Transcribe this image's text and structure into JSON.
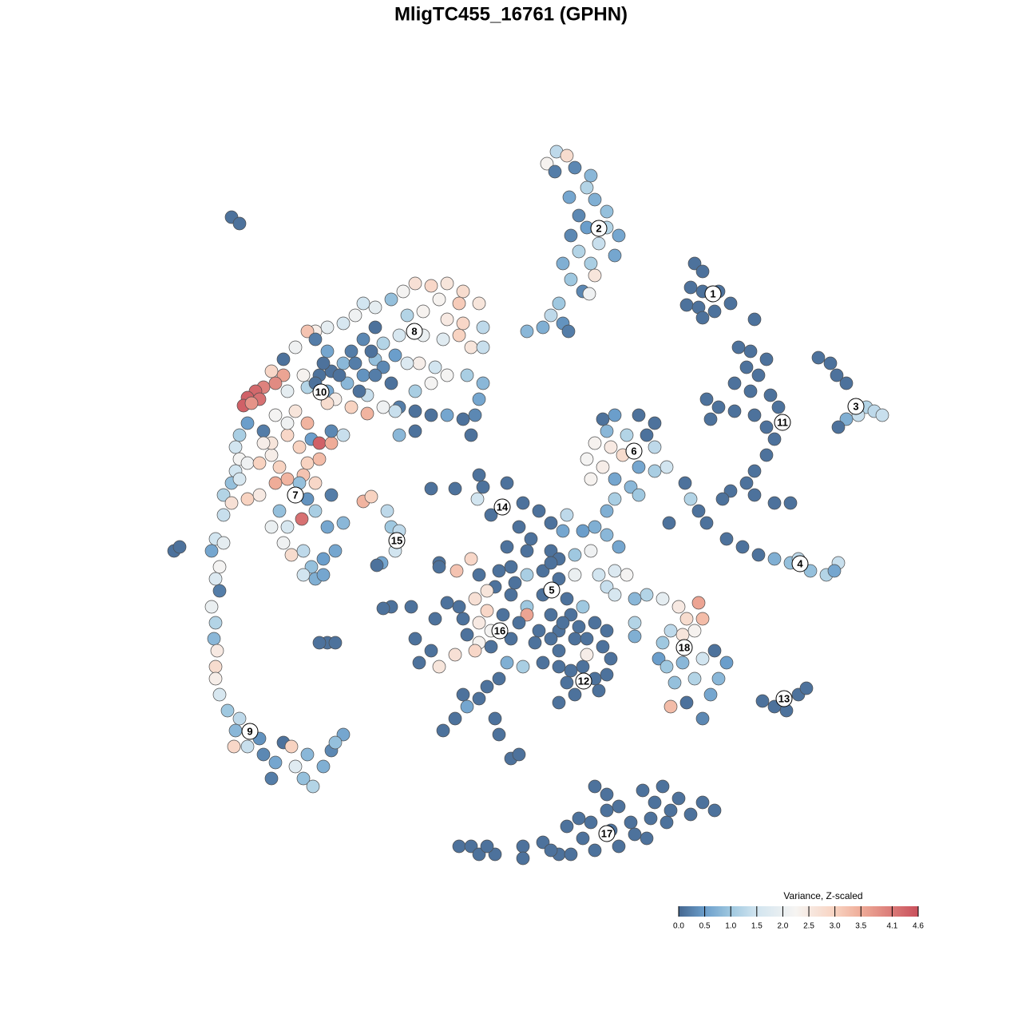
{
  "chart_data": {
    "type": "scatter",
    "title": "MligTC455_16761 (GPHN)",
    "xlim": [
      0,
      1280
    ],
    "ylim": [
      1280,
      0
    ],
    "x": [
      697,
      710,
      685,
      695,
      720,
      740,
      735,
      713,
      745,
      760,
      725,
      735,
      760,
      775,
      715,
      750,
      770,
      725,
      705,
      740,
      745,
      715,
      730,
      738,
      700,
      690,
      705,
      680,
      660,
      712,
      870,
      880,
      865,
      880,
      900,
      860,
      875,
      895,
      915,
      880,
      945,
      925,
      940,
      960,
      935,
      950,
      920,
      940,
      965,
      885,
      900,
      920,
      945,
      975,
      960,
      890,
      970,
      960,
      945,
      935,
      915,
      905,
      945,
      970,
      990,
      1025,
      1040,
      1048,
      1060,
      1085,
      1095,
      1105,
      1075,
      1060,
      1050,
      858,
      865,
      875,
      885,
      910,
      930,
      950,
      970,
      990,
      1015,
      1035,
      1050,
      1045,
      1000,
      838,
      755,
      770,
      800,
      820,
      760,
      785,
      810,
      745,
      765,
      780,
      820,
      735,
      755,
      800,
      820,
      835,
      740,
      770,
      790,
      800,
      770,
      760,
      540,
      570,
      600,
      605,
      635,
      598,
      615,
      655,
      675,
      690,
      710,
      705,
      730,
      745,
      760,
      775,
      740,
      720,
      635,
      660,
      690,
      640,
      660,
      680,
      700,
      720,
      750,
      770,
      785,
      760,
      590,
      572,
      550,
      600,
      620,
      610,
      640,
      660,
      680,
      710,
      730,
      770,
      795,
      810,
      830,
      850,
      860,
      875,
      880,
      855,
      870,
      840,
      830,
      825,
      835,
      855,
      880,
      895,
      910,
      900,
      870,
      845,
      890,
      860,
      840,
      880,
      795,
      795,
      575,
      595,
      610,
      560,
      545,
      580,
      600,
      615,
      585,
      600,
      640,
      660,
      675,
      700,
      720,
      745,
      755,
      735,
      765,
      700,
      680,
      715,
      745,
      750,
      720,
      700,
      520,
      540,
      525,
      550,
      570,
      595,
      615,
      635,
      655,
      625,
      610,
      600,
      580,
      585,
      570,
      555,
      620,
      625,
      640,
      650,
      490,
      515,
      410,
      550,
      650,
      665,
      700,
      690,
      715,
      690,
      705,
      725,
      670,
      690,
      735,
      760,
      650,
      630,
      645,
      625,
      700,
      730,
      710,
      760,
      455,
      465,
      485,
      490,
      500,
      495,
      478,
      472,
      575,
      590,
      600,
      620,
      655,
      680,
      700,
      715,
      710,
      725,
      740,
      745,
      760,
      775,
      790,
      805,
      820,
      835,
      830,
      850,
      865,
      880,
      895,
      775,
      745,
      810,
      655,
      765,
      795,
      840,
      815,
      760,
      730,
      690,
      610,
      955,
      970,
      985,
      1000,
      1010,
      270,
      280,
      265,
      275,
      270,
      275,
      265,
      270,
      268,
      272,
      270,
      270,
      275,
      285,
      300,
      295,
      293,
      310,
      325,
      330,
      345,
      355,
      365,
      370,
      385,
      380,
      392,
      405,
      415,
      430,
      420,
      340,
      290,
      300,
      218,
      225,
      480,
      400,
      420,
      520,
      540,
      560,
      580,
      600,
      575,
      550,
      505,
      490,
      470,
      455,
      445,
      430,
      410,
      395,
      385,
      370,
      355,
      340,
      355,
      345,
      330,
      320,
      310,
      305,
      325,
      315,
      470,
      455,
      440,
      430,
      415,
      400,
      380,
      385,
      410,
      420,
      440,
      460,
      435,
      460,
      480,
      500,
      495,
      520,
      540,
      560,
      580,
      590,
      595,
      600,
      605,
      585,
      560,
      545,
      525,
      510,
      495,
      470,
      480,
      500,
      530,
      555,
      575,
      590,
      605,
      605,
      560,
      580,
      510,
      530,
      480,
      455,
      410,
      395,
      540,
      520,
      360,
      370,
      345,
      330,
      310,
      300,
      295,
      300,
      295,
      290,
      280,
      290,
      310,
      325,
      300,
      310,
      325,
      340,
      350,
      360,
      345,
      380,
      395,
      385,
      400,
      375,
      360,
      340,
      330,
      360,
      385,
      390,
      400,
      415,
      415,
      430,
      410,
      378,
      360,
      340,
      355,
      365,
      380,
      390,
      380,
      395,
      405,
      420,
      430,
      410,
      395,
      385,
      375,
      415,
      405,
      350,
      520,
      500,
      280,
      465,
      445,
      425,
      405,
      450,
      470,
      490,
      395
    ],
    "y": [
      190,
      195,
      205,
      215,
      210,
      220,
      235,
      247,
      250,
      265,
      270,
      285,
      285,
      295,
      295,
      305,
      320,
      315,
      330,
      330,
      345,
      350,
      365,
      368,
      380,
      395,
      405,
      410,
      415,
      415,
      330,
      340,
      360,
      365,
      365,
      382,
      385,
      390,
      380,
      398,
      400,
      435,
      440,
      450,
      460,
      470,
      480,
      490,
      495,
      500,
      510,
      515,
      520,
      510,
      535,
      525,
      550,
      570,
      590,
      605,
      615,
      625,
      620,
      630,
      630,
      448,
      455,
      470,
      480,
      510,
      515,
      520,
      520,
      525,
      535,
      605,
      625,
      640,
      655,
      675,
      685,
      695,
      700,
      705,
      715,
      720,
      705,
      715,
      700,
      655,
      525,
      520,
      520,
      530,
      540,
      545,
      545,
      555,
      560,
      570,
      560,
      575,
      585,
      585,
      590,
      585,
      600,
      600,
      610,
      620,
      625,
      640,
      612,
      612,
      595,
      610,
      605,
      625,
      645,
      630,
      640,
      655,
      645,
      665,
      665,
      660,
      670,
      685,
      690,
      695,
      685,
      690,
      690,
      710,
      720,
      715,
      725,
      720,
      720,
      715,
      720,
      735,
      700,
      715,
      705,
      720,
      735,
      740,
      745,
      760,
      745,
      750,
      760,
      745,
      750,
      745,
      750,
      760,
      775,
      755,
      775,
      795,
      790,
      790,
      805,
      825,
      835,
      830,
      825,
      815,
      830,
      850,
      850,
      855,
      870,
      880,
      885,
      900,
      780,
      797,
      760,
      750,
      765,
      755,
      775,
      775,
      780,
      790,
      795,
      805,
      800,
      770,
      790,
      790,
      800,
      780,
      810,
      820,
      825,
      815,
      830,
      840,
      850,
      865,
      870,
      880,
      800,
      815,
      830,
      835,
      820,
      815,
      810,
      830,
      835,
      850,
      860,
      875,
      870,
      885,
      900,
      915,
      900,
      920,
      950,
      945,
      760,
      760,
      805,
      710,
      660,
      675,
      700,
      705,
      770,
      770,
      780,
      785,
      805,
      800,
      800,
      790,
      780,
      770,
      730,
      715,
      835,
      835,
      855,
      845,
      628,
      622,
      640,
      660,
      665,
      690,
      705,
      708,
      1060,
      1060,
      1070,
      1070,
      1060,
      1055,
      1070,
      1070,
      1035,
      1025,
      1030,
      985,
      995,
      1010,
      1030,
      990,
      1005,
      1030,
      985,
      1000,
      1020,
      1005,
      1015,
      1060,
      1065,
      1050,
      1075,
      1040,
      1045,
      1015,
      1025,
      1015,
      1050,
      1065,
      1060,
      878,
      885,
      890,
      870,
      862,
      675,
      680,
      690,
      710,
      725,
      740,
      760,
      780,
      800,
      815,
      835,
      850,
      870,
      890,
      900,
      915,
      935,
      935,
      925,
      945,
      955,
      930,
      935,
      960,
      945,
      975,
      985,
      960,
      940,
      920,
      930,
      975,
      272,
      280,
      690,
      685,
      762,
      805,
      805,
      355,
      358,
      355,
      365,
      380,
      380,
      375,
      365,
      375,
      385,
      380,
      395,
      405,
      410,
      415,
      415,
      435,
      450,
      465,
      470,
      480,
      485,
      490,
      498,
      508,
      500,
      505,
      410,
      425,
      440,
      455,
      465,
      470,
      470,
      485,
      490,
      500,
      510,
      518,
      480,
      495,
      510,
      510,
      515,
      515,
      520,
      520,
      525,
      545,
      520,
      500,
      480,
      470,
      470,
      460,
      455,
      455,
      445,
      450,
      430,
      420,
      420,
      425,
      420,
      435,
      435,
      410,
      400,
      405,
      395,
      390,
      460,
      470,
      440,
      425,
      480,
      490,
      490,
      515,
      520,
      540,
      530,
      545,
      560,
      575,
      590,
      605,
      620,
      630,
      625,
      620,
      600,
      580,
      580,
      570,
      585,
      600,
      605,
      595,
      605,
      580,
      575,
      560,
      545,
      555,
      555,
      530,
      530,
      550,
      555,
      555,
      540,
      545,
      505,
      650,
      660,
      660,
      680,
      695,
      690,
      710,
      720,
      725,
      700,
      690,
      655,
      660,
      640,
      625,
      605,
      620,
      720,
      640,
      540,
      545,
      645,
      440,
      455,
      470,
      455,
      490,
      470,
      480,
      480
    ],
    "values": [
      1.3,
      2.8,
      2.3,
      0.2,
      0.3,
      0.8,
      1.2,
      0.6,
      0.7,
      0.9,
      0.3,
      0.5,
      1.2,
      0.6,
      0.3,
      1.4,
      0.6,
      1.2,
      0.7,
      1.1,
      2.6,
      1.0,
      0.3,
      2.1,
      1.0,
      1.3,
      0.4,
      0.7,
      0.8,
      0.2,
      0.1,
      0.1,
      0.1,
      0.1,
      0.1,
      0.1,
      0.1,
      0.1,
      0.1,
      0.1,
      0.1,
      0.1,
      0.1,
      0.1,
      0.1,
      0.1,
      0.1,
      0.1,
      0.1,
      0.1,
      0.1,
      0.1,
      0.1,
      0.1,
      0.1,
      0.1,
      0.1,
      0.1,
      0.1,
      0.1,
      0.1,
      0.1,
      0.1,
      0.1,
      0.1,
      0.1,
      0.1,
      0.1,
      0.1,
      1.2,
      1.3,
      1.4,
      1.4,
      0.7,
      0.1,
      0.1,
      1.2,
      0.1,
      0.1,
      0.1,
      0.1,
      0.1,
      0.7,
      0.9,
      0.9,
      1.2,
      1.4,
      0.6,
      1.3,
      0.1,
      0.1,
      0.5,
      0.1,
      0.1,
      0.8,
      1.2,
      0.1,
      2.3,
      2.5,
      2.8,
      1.3,
      2.2,
      2.4,
      0.6,
      1.1,
      1.5,
      2.3,
      0.6,
      0.8,
      1.0,
      1.1,
      0.7,
      0.1,
      0.1,
      0.1,
      0.1,
      0.1,
      1.5,
      0.1,
      0.1,
      0.1,
      0.1,
      1.3,
      0.6,
      0.5,
      0.7,
      0.8,
      0.6,
      2.1,
      1.0,
      0.1,
      0.1,
      0.1,
      0.1,
      1.1,
      0.1,
      0.1,
      2.0,
      1.5,
      1.7,
      2.2,
      1.4,
      2.9,
      3.2,
      0.1,
      0.1,
      0.1,
      2.6,
      0.1,
      1.0,
      0.1,
      0.1,
      1.0,
      1.6,
      0.8,
      1.2,
      1.9,
      2.5,
      2.8,
      3.6,
      3.3,
      2.6,
      2.3,
      1.3,
      1.0,
      0.5,
      1.0,
      0.8,
      1.5,
      0.1,
      0.5,
      0.8,
      1.2,
      0.9,
      0.6,
      0.1,
      3.3,
      0.3,
      1.2,
      0.7,
      0.1,
      2.7,
      2.9,
      0.1,
      0.1,
      0.1,
      2.5,
      2.2,
      0.1,
      2.3,
      0.1,
      3.6,
      0.1,
      0.1,
      0.1,
      0.1,
      0.1,
      2.4,
      0.1,
      0.1,
      0.1,
      0.1,
      0.1,
      0.1,
      0.1,
      0.1,
      0.1,
      0.1,
      0.1,
      2.6,
      2.7,
      2.9,
      0.1,
      0.7,
      1.1,
      0.1,
      0.1,
      0.1,
      0.1,
      0.6,
      0.1,
      0.1,
      0.1,
      0.1,
      0.1,
      0.1,
      0.1,
      0.1,
      0.1,
      0.1,
      0.1,
      0.1,
      0.1,
      0.1,
      0.1,
      0.1,
      0.1,
      0.1,
      0.1,
      0.1,
      0.1,
      0.1,
      0.1,
      0.1,
      0.1,
      0.1,
      0.1,
      0.1,
      0.1,
      0.1,
      3.4,
      3.0,
      1.3,
      1.0,
      1.3,
      1.5,
      0.6,
      0.1,
      0.1,
      0.1,
      0.1,
      0.1,
      0.1,
      0.1,
      0.1,
      0.1,
      0.1,
      0.1,
      0.1,
      0.1,
      0.1,
      0.1,
      0.1,
      0.1,
      0.1,
      0.1,
      0.1,
      0.1,
      0.1,
      0.1,
      0.1,
      0.1,
      0.1,
      0.1,
      0.1,
      0.1,
      0.1,
      0.1,
      0.1,
      0.1,
      0.1,
      0.1,
      0.1,
      0.1,
      0.1,
      0.1,
      0.1,
      0.1,
      1.5,
      1.9,
      0.6,
      2.2,
      1.7,
      0.2,
      2.0,
      1.2,
      0.8,
      2.5,
      2.8,
      2.4,
      1.6,
      1.0,
      1.3,
      0.8,
      2.9,
      1.4,
      0.4,
      0.3,
      0.6,
      0.1,
      3.0,
      1.8,
      0.8,
      0.9,
      1.2,
      0.7,
      0.3,
      0.6,
      0.9,
      0.2,
      0.1,
      0.1,
      0.1,
      0.1,
      0.1,
      0.1,
      0.1,
      2.7,
      2.9,
      2.6,
      2.8,
      2.6,
      3.1,
      2.3,
      2.2,
      0.9,
      1.9,
      1.5,
      2.1,
      1.6,
      1.9,
      2.4,
      3.2,
      2.1,
      0.1,
      2.9,
      3.6,
      3.9,
      4.0,
      4.3,
      4.4,
      4.4,
      4.2,
      3.8,
      0.1,
      0.3,
      0.2,
      0.8,
      0.1,
      0.1,
      2.3,
      1.2,
      0.6,
      2.4,
      3.0,
      3.4,
      0.8,
      1.4,
      2.1,
      0.2,
      1.4,
      0.1,
      0.1,
      0.6,
      0.1,
      0.1,
      0.3,
      0.6,
      0.8,
      1.1,
      2.2,
      1.5,
      2.4,
      1.7,
      0.5,
      0.9,
      1.2,
      1.6,
      2.0,
      1.8,
      3.0,
      2.6,
      1.4,
      1.3,
      2.5,
      2.9,
      1.2,
      2.3,
      0.3,
      0.4,
      0.6,
      0.2,
      2.2,
      1.1,
      1.9,
      2.6,
      2.2,
      0.2,
      0.5,
      1.1,
      1.5,
      2.2,
      1.5,
      0.9,
      1.2,
      2.7,
      3.0,
      2.5,
      1.6,
      2.1,
      3.0,
      2.4,
      3.0,
      3.4,
      3.5,
      3.2,
      2.9,
      3.0,
      3.3,
      3.0,
      2.9,
      2.6,
      2.4,
      2.1,
      3.4,
      0.5,
      4.4,
      3.5,
      0.3,
      1.4,
      2.8,
      4.2,
      1.6,
      2.0,
      2.1,
      2.8,
      1.3,
      0.9,
      1.5,
      0.7,
      0.5,
      0.6,
      0.8,
      0.6,
      1.1,
      0.4,
      0.9,
      0.2,
      0.6,
      0.9,
      0.1,
      0.8,
      1.4,
      0.1,
      0.2,
      0.1,
      0.1,
      0.1,
      0.2,
      0.1,
      0.1
    ],
    "clusters": {
      "labels": [
        "1",
        "2",
        "3",
        "4",
        "5",
        "6",
        "7",
        "8",
        "9",
        "10",
        "11",
        "12",
        "13",
        "14",
        "15",
        "16",
        "17",
        "18"
      ],
      "x": [
        893,
        750,
        1072,
        1002,
        691,
        794,
        370,
        519,
        313,
        402,
        980,
        731,
        982,
        629,
        497,
        626,
        760,
        857
      ],
      "y": [
        368,
        286,
        509,
        706,
        739,
        565,
        620,
        415,
        916,
        491,
        529,
        853,
        875,
        635,
        677,
        790,
        1044,
        811
      ]
    },
    "color_scale": {
      "title": "Variance, Z-scaled",
      "lim": [
        0,
        4.6
      ],
      "stops": [
        [
          0,
          "#456790"
        ],
        [
          0.5,
          "#6b9ecb"
        ],
        [
          1,
          "#9fc8e0"
        ],
        [
          1.5,
          "#d2e5f0"
        ],
        [
          2.25,
          "#f6f4f2"
        ],
        [
          3,
          "#f8d3c1"
        ],
        [
          3.5,
          "#efac98"
        ],
        [
          4.6,
          "#c9505c"
        ]
      ],
      "ticks": [
        {
          "value": 0,
          "label": "0.0"
        },
        0.5,
        {
          "value": 1,
          "label": "1.0"
        },
        1.5,
        {
          "value": 2,
          "label": "2.0"
        },
        2.5,
        {
          "value": 3,
          "label": "3.0"
        },
        3.5,
        4.1,
        4.6
      ]
    }
  }
}
